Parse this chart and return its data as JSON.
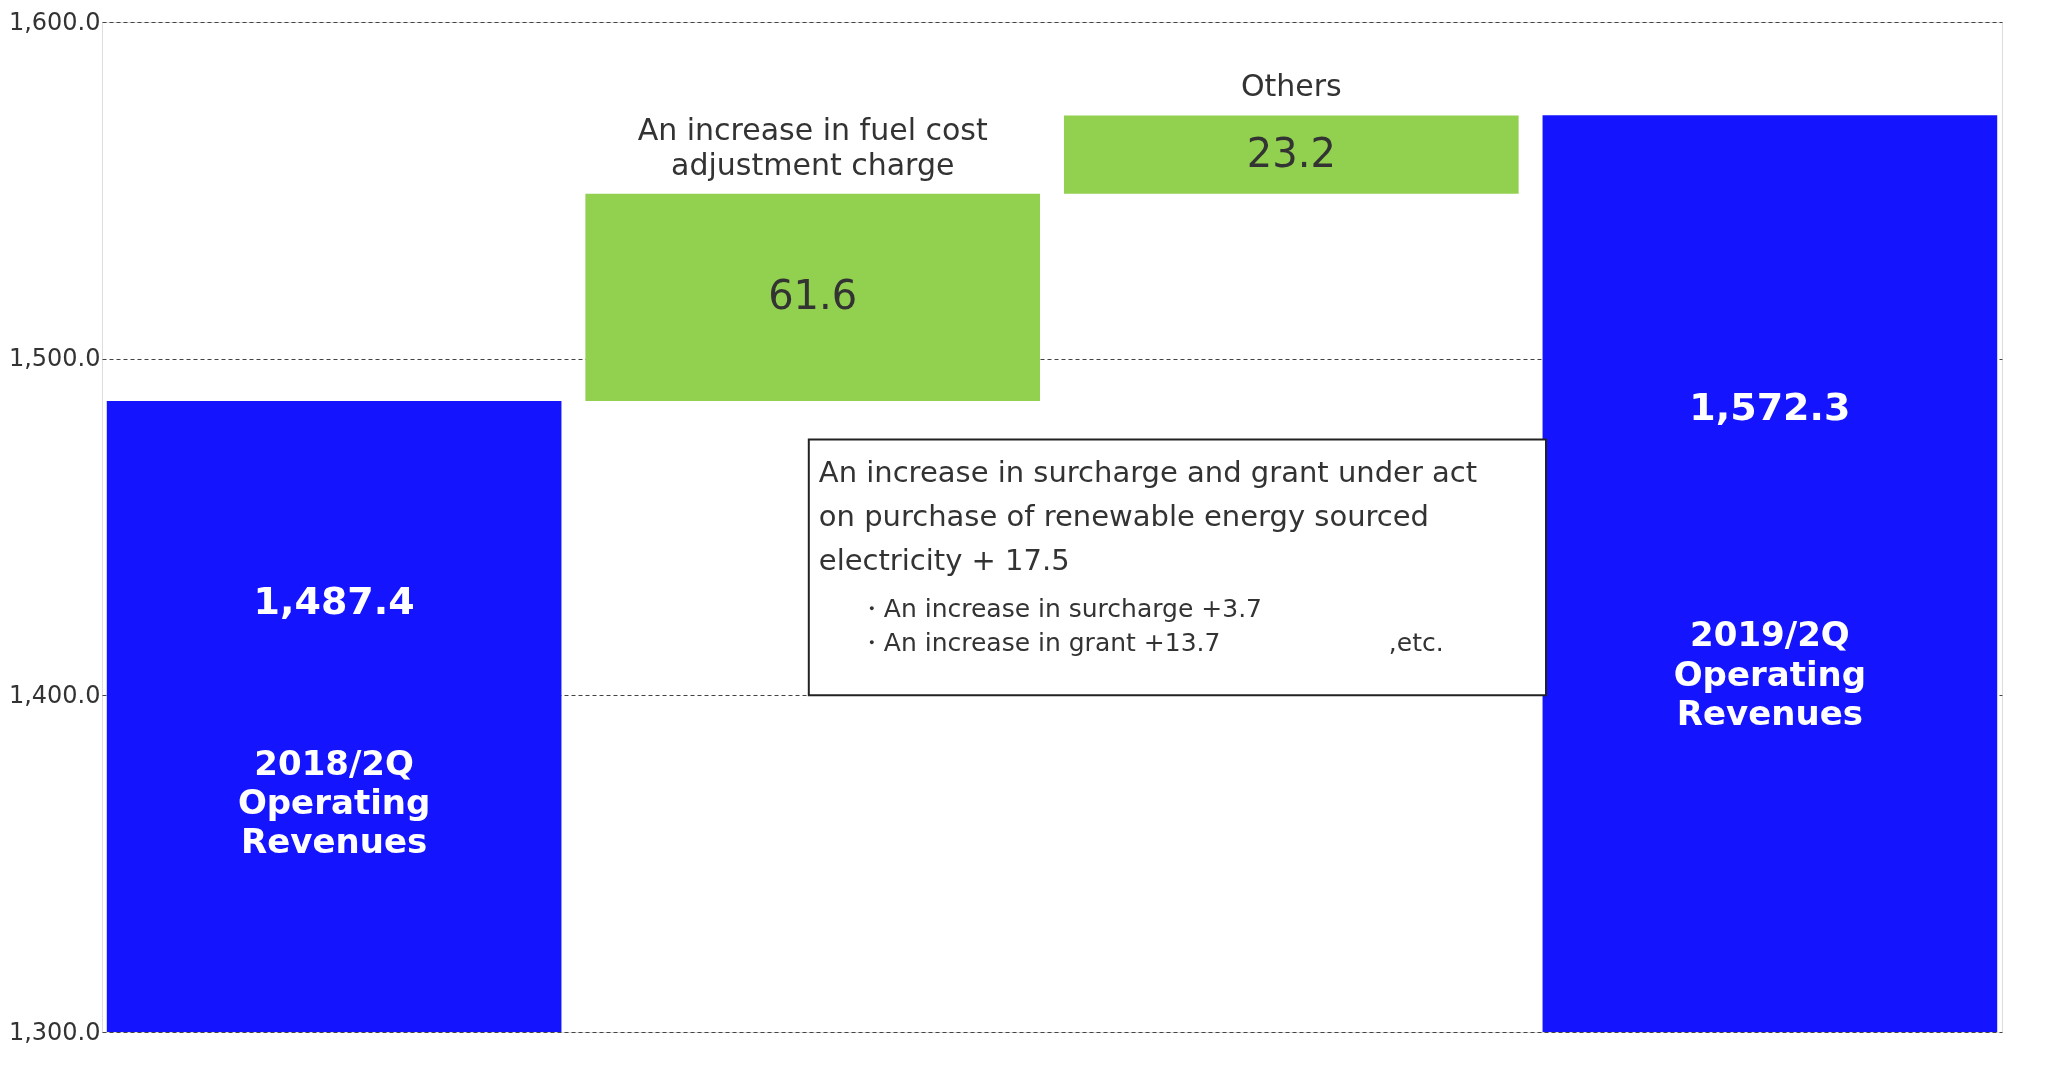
{
  "chart_data": {
    "type": "bar",
    "categories": [
      "2018/2Q Operating Revenues",
      "An increase in fuel cost adjustment charge",
      "Others",
      "2019/2Q Operating Revenues"
    ],
    "values": [
      1487.4,
      61.6,
      23.2,
      1572.3
    ],
    "base": [
      null,
      1487.4,
      1549.0,
      null
    ],
    "colors": [
      "#1414ff",
      "#92d050",
      "#92d050",
      "#1414ff"
    ],
    "value_labels": [
      "1,487.4",
      "61.6",
      "23.2",
      "1,572.3"
    ],
    "ylim": [
      1300,
      1600
    ],
    "yticks": [
      {
        "value": 1300,
        "label": "1,300.0"
      },
      {
        "value": 1400,
        "label": "1,400.0"
      },
      {
        "value": 1500,
        "label": "1,500.0"
      },
      {
        "value": 1600,
        "label": "1,600.0"
      }
    ],
    "grid": "y",
    "tick_labels": "y",
    "annotations": [
      "An increase in surcharge and grant under act on purchase of renewable energy sourced electricity   + 17.5",
      "・An increase in surcharge   +3.7",
      "・An increase in grant        +13.7",
      ",etc."
    ]
  }
}
